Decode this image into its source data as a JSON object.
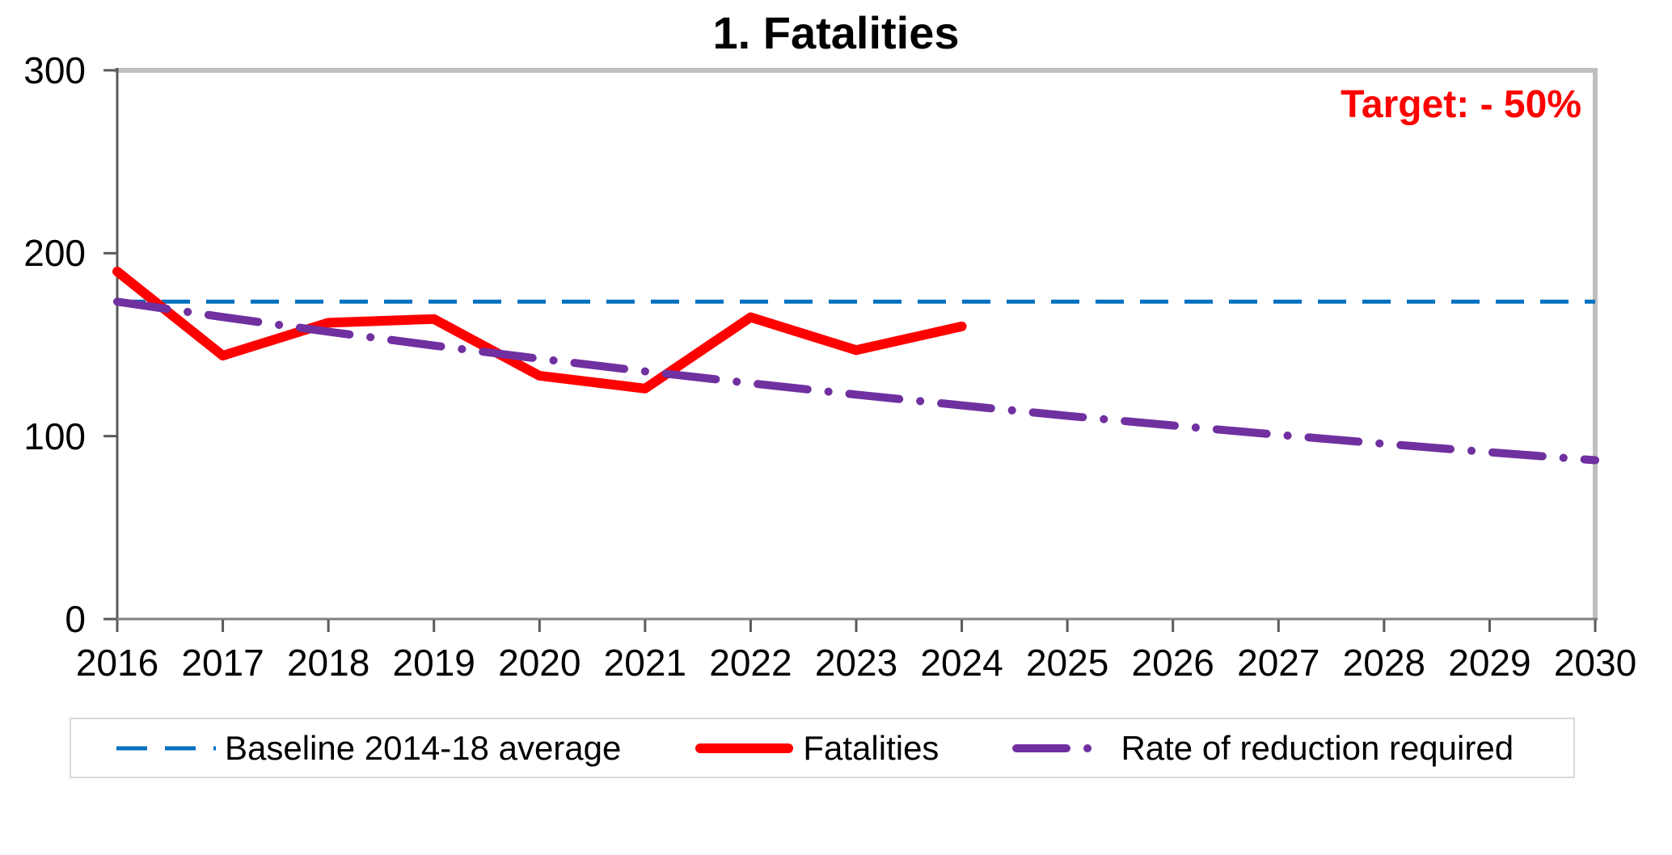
{
  "title": "1. Fatalities",
  "colors": {
    "annotation_text": "#FF0000",
    "baseline_line": "#0070C0",
    "fatalities_line": "#FF0000",
    "reduction_line": "#7030A0",
    "plot_border_light": "#BFBFBF",
    "axis_left": "#595959",
    "axis_bottom": "#808080",
    "tick": "#595959",
    "legend_border": "#D9D9D9",
    "text": "#000000"
  },
  "chart_data": {
    "type": "line",
    "title": "1. Fatalities",
    "annotation": "Target: - 50%",
    "xlabel": "",
    "ylabel": "",
    "xlim": [
      2016,
      2030
    ],
    "ylim": [
      0,
      300
    ],
    "yticks": [
      0,
      100,
      200,
      300
    ],
    "xticks": [
      2016,
      2017,
      2018,
      2019,
      2020,
      2021,
      2022,
      2023,
      2024,
      2025,
      2026,
      2027,
      2028,
      2029,
      2030
    ],
    "grid": false,
    "legend_position": "bottom",
    "series": [
      {
        "key": "baseline",
        "name": "Baseline 2014-18 average",
        "style": "dashed",
        "color": "#0070C0",
        "x": [
          2016,
          2030
        ],
        "values": [
          173.5,
          173.5
        ]
      },
      {
        "key": "fatalities",
        "name": "Fatalities",
        "style": "solid",
        "color": "#FF0000",
        "x": [
          2016,
          2017,
          2018,
          2019,
          2020,
          2021,
          2022,
          2023,
          2024
        ],
        "values": [
          190,
          144,
          162,
          164,
          133,
          126,
          165,
          147,
          160
        ]
      },
      {
        "key": "reduction",
        "name": "Rate of reduction required",
        "style": "dashdot",
        "color": "#7030A0",
        "x": [
          2016,
          2017,
          2018,
          2019,
          2020,
          2021,
          2022,
          2023,
          2024,
          2025,
          2026,
          2027,
          2028,
          2029,
          2030
        ],
        "values": [
          173.5,
          165.1,
          157.1,
          149.5,
          142.3,
          135.4,
          128.9,
          122.7,
          116.8,
          111.1,
          105.8,
          100.7,
          95.8,
          91.2,
          86.8
        ]
      }
    ]
  }
}
